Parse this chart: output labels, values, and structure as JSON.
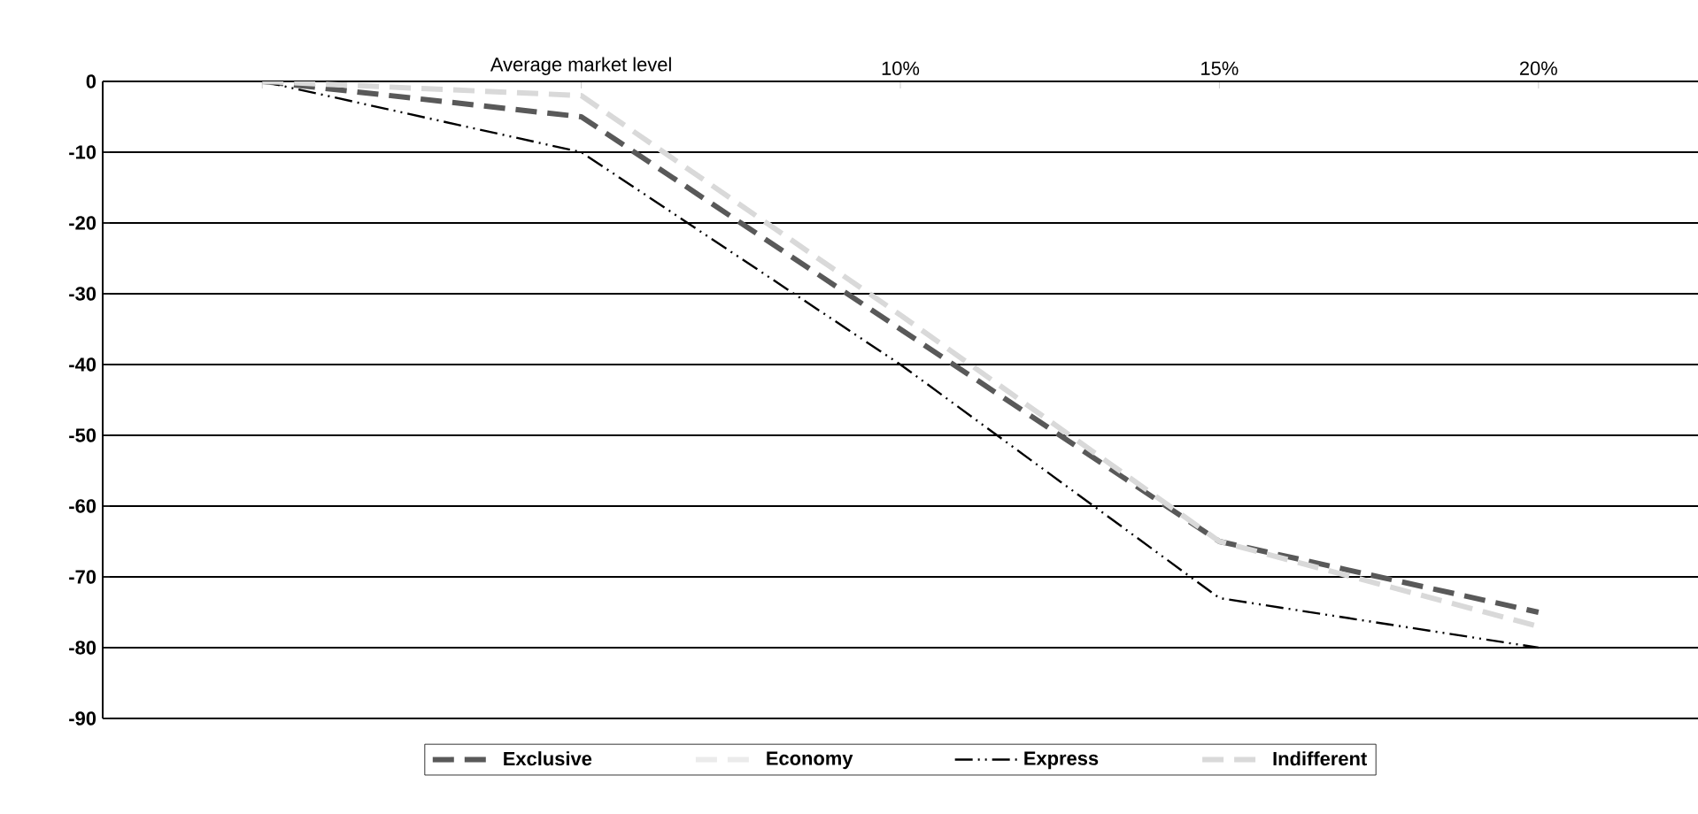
{
  "chart_data": {
    "type": "line",
    "categories": [
      null,
      "Average market level",
      "10%",
      "15%",
      "20%"
    ],
    "series": [
      {
        "name": "Exclusive",
        "color": "#595959",
        "line_style": "dashed",
        "values": [
          0,
          -5,
          -35,
          -65,
          -75
        ]
      },
      {
        "name": "Economy",
        "color": "#ebebeb",
        "line_style": "dashed",
        "values": [
          null,
          null,
          null,
          null,
          null
        ]
      },
      {
        "name": "Express",
        "color": "#000000",
        "line_style": "dashdotdot",
        "values": [
          0,
          -10,
          -40,
          -73,
          -80
        ]
      },
      {
        "name": "Indifferent",
        "color": "#d9d9d9",
        "line_style": "dashed",
        "values": [
          0,
          -2,
          -33,
          -65,
          -77
        ]
      }
    ],
    "ylim": [
      -90,
      0
    ],
    "yticks": [
      -90,
      -80,
      -70,
      -60,
      -50,
      -40,
      -30,
      -20,
      -10,
      0
    ],
    "grid": "y",
    "legend": "bottom"
  }
}
